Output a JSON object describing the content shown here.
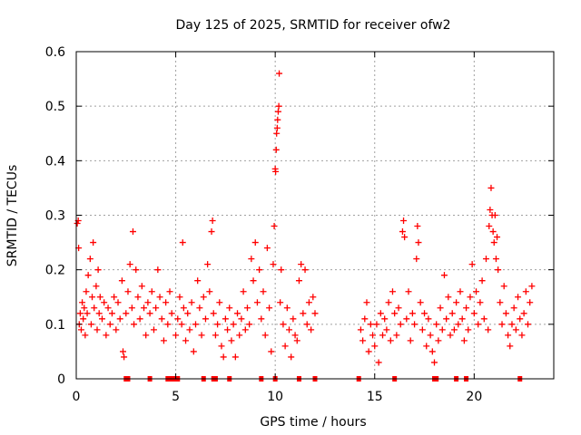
{
  "chart_data": {
    "type": "scatter",
    "title": "Day 125 of 2025, SRMTID for receiver ofw2",
    "xlabel": "GPS time / hours",
    "ylabel": "SRMTID / TECUs",
    "xlim": [
      0,
      24
    ],
    "ylim": [
      0,
      0.6
    ],
    "x_ticks": [
      0,
      5,
      10,
      15,
      20
    ],
    "x_tick_labels": [
      "0",
      "5",
      "10",
      "15",
      "20"
    ],
    "y_ticks": [
      0,
      0.1,
      0.2,
      0.3,
      0.4,
      0.5,
      0.6
    ],
    "y_tick_labels": [
      "0",
      "0.1",
      "0.2",
      "0.3",
      "0.4",
      "0.5",
      "0.6"
    ],
    "grid": true,
    "marker": "+",
    "series": [
      {
        "name": "SRMTID",
        "color": "#ff0000",
        "points": [
          [
            0.05,
            0.285
          ],
          [
            0.1,
            0.29
          ],
          [
            0.12,
            0.24
          ],
          [
            0.15,
            0.1
          ],
          [
            0.2,
            0.12
          ],
          [
            0.25,
            0.09
          ],
          [
            0.3,
            0.14
          ],
          [
            0.35,
            0.11
          ],
          [
            0.4,
            0.13
          ],
          [
            0.45,
            0.08
          ],
          [
            0.5,
            0.16
          ],
          [
            0.55,
            0.12
          ],
          [
            0.6,
            0.19
          ],
          [
            0.7,
            0.22
          ],
          [
            0.75,
            0.1
          ],
          [
            0.8,
            0.15
          ],
          [
            0.85,
            0.25
          ],
          [
            0.9,
            0.13
          ],
          [
            1.0,
            0.17
          ],
          [
            1.05,
            0.09
          ],
          [
            1.1,
            0.2
          ],
          [
            1.15,
            0.12
          ],
          [
            1.2,
            0.15
          ],
          [
            1.3,
            0.11
          ],
          [
            1.4,
            0.14
          ],
          [
            1.5,
            0.08
          ],
          [
            1.6,
            0.13
          ],
          [
            1.7,
            0.1
          ],
          [
            1.8,
            0.12
          ],
          [
            1.9,
            0.15
          ],
          [
            2.0,
            0.09
          ],
          [
            2.1,
            0.14
          ],
          [
            2.2,
            0.11
          ],
          [
            2.3,
            0.18
          ],
          [
            2.35,
            0.05
          ],
          [
            2.4,
            0.04
          ],
          [
            2.5,
            0.12
          ],
          [
            2.6,
            0.16
          ],
          [
            2.7,
            0.21
          ],
          [
            2.8,
            0.13
          ],
          [
            2.85,
            0.27
          ],
          [
            2.9,
            0.1
          ],
          [
            3.0,
            0.2
          ],
          [
            3.1,
            0.15
          ],
          [
            3.2,
            0.11
          ],
          [
            3.3,
            0.17
          ],
          [
            3.4,
            0.13
          ],
          [
            3.5,
            0.08
          ],
          [
            3.6,
            0.14
          ],
          [
            3.7,
            0.12
          ],
          [
            3.8,
            0.16
          ],
          [
            3.9,
            0.09
          ],
          [
            4.0,
            0.13
          ],
          [
            4.1,
            0.2
          ],
          [
            4.2,
            0.15
          ],
          [
            4.3,
            0.11
          ],
          [
            4.4,
            0.07
          ],
          [
            4.5,
            0.14
          ],
          [
            4.6,
            0.1
          ],
          [
            4.7,
            0.16
          ],
          [
            4.8,
            0.12
          ],
          [
            5.0,
            0.08
          ],
          [
            5.1,
            0.11
          ],
          [
            5.2,
            0.15
          ],
          [
            5.3,
            0.1
          ],
          [
            5.35,
            0.25
          ],
          [
            5.4,
            0.13
          ],
          [
            5.5,
            0.07
          ],
          [
            5.6,
            0.12
          ],
          [
            5.7,
            0.09
          ],
          [
            5.8,
            0.14
          ],
          [
            5.9,
            0.05
          ],
          [
            6.0,
            0.1
          ],
          [
            6.1,
            0.18
          ],
          [
            6.2,
            0.13
          ],
          [
            6.3,
            0.08
          ],
          [
            6.4,
            0.15
          ],
          [
            6.5,
            0.11
          ],
          [
            6.6,
            0.21
          ],
          [
            6.7,
            0.16
          ],
          [
            6.8,
            0.27
          ],
          [
            6.85,
            0.29
          ],
          [
            6.9,
            0.12
          ],
          [
            7.0,
            0.08
          ],
          [
            7.1,
            0.1
          ],
          [
            7.2,
            0.14
          ],
          [
            7.3,
            0.06
          ],
          [
            7.4,
            0.04
          ],
          [
            7.5,
            0.11
          ],
          [
            7.6,
            0.09
          ],
          [
            7.7,
            0.13
          ],
          [
            7.8,
            0.07
          ],
          [
            7.9,
            0.1
          ],
          [
            8.0,
            0.04
          ],
          [
            8.1,
            0.12
          ],
          [
            8.2,
            0.08
          ],
          [
            8.3,
            0.11
          ],
          [
            8.4,
            0.16
          ],
          [
            8.5,
            0.09
          ],
          [
            8.6,
            0.13
          ],
          [
            8.7,
            0.1
          ],
          [
            8.8,
            0.22
          ],
          [
            8.9,
            0.18
          ],
          [
            9.0,
            0.25
          ],
          [
            9.1,
            0.14
          ],
          [
            9.2,
            0.2
          ],
          [
            9.3,
            0.11
          ],
          [
            9.4,
            0.16
          ],
          [
            9.5,
            0.08
          ],
          [
            9.6,
            0.24
          ],
          [
            9.7,
            0.13
          ],
          [
            9.8,
            0.05
          ],
          [
            9.9,
            0.21
          ],
          [
            9.95,
            0.28
          ],
          [
            10.0,
            0.385
          ],
          [
            10.02,
            0.38
          ],
          [
            10.05,
            0.42
          ],
          [
            10.07,
            0.45
          ],
          [
            10.1,
            0.46
          ],
          [
            10.12,
            0.475
          ],
          [
            10.15,
            0.49
          ],
          [
            10.18,
            0.5
          ],
          [
            10.2,
            0.56
          ],
          [
            10.25,
            0.14
          ],
          [
            10.3,
            0.2
          ],
          [
            10.4,
            0.1
          ],
          [
            10.5,
            0.06
          ],
          [
            10.6,
            0.13
          ],
          [
            10.7,
            0.09
          ],
          [
            10.8,
            0.04
          ],
          [
            10.9,
            0.11
          ],
          [
            11.0,
            0.08
          ],
          [
            11.1,
            0.07
          ],
          [
            11.2,
            0.18
          ],
          [
            11.3,
            0.21
          ],
          [
            11.4,
            0.12
          ],
          [
            11.5,
            0.2
          ],
          [
            11.6,
            0.1
          ],
          [
            11.7,
            0.14
          ],
          [
            11.8,
            0.09
          ],
          [
            11.9,
            0.15
          ],
          [
            12.0,
            0.12
          ],
          [
            14.3,
            0.09
          ],
          [
            14.4,
            0.07
          ],
          [
            14.5,
            0.11
          ],
          [
            14.6,
            0.14
          ],
          [
            14.7,
            0.05
          ],
          [
            14.8,
            0.1
          ],
          [
            14.9,
            0.08
          ],
          [
            15.0,
            0.06
          ],
          [
            15.1,
            0.1
          ],
          [
            15.2,
            0.03
          ],
          [
            15.3,
            0.12
          ],
          [
            15.4,
            0.08
          ],
          [
            15.5,
            0.11
          ],
          [
            15.6,
            0.09
          ],
          [
            15.7,
            0.14
          ],
          [
            15.8,
            0.07
          ],
          [
            15.9,
            0.16
          ],
          [
            16.0,
            0.12
          ],
          [
            16.1,
            0.08
          ],
          [
            16.2,
            0.13
          ],
          [
            16.3,
            0.1
          ],
          [
            16.4,
            0.27
          ],
          [
            16.45,
            0.29
          ],
          [
            16.5,
            0.26
          ],
          [
            16.6,
            0.11
          ],
          [
            16.7,
            0.16
          ],
          [
            16.8,
            0.07
          ],
          [
            16.9,
            0.12
          ],
          [
            17.0,
            0.1
          ],
          [
            17.1,
            0.22
          ],
          [
            17.15,
            0.28
          ],
          [
            17.2,
            0.25
          ],
          [
            17.3,
            0.14
          ],
          [
            17.4,
            0.09
          ],
          [
            17.5,
            0.12
          ],
          [
            17.6,
            0.06
          ],
          [
            17.7,
            0.11
          ],
          [
            17.8,
            0.08
          ],
          [
            17.9,
            0.05
          ],
          [
            18.0,
            0.03
          ],
          [
            18.1,
            0.1
          ],
          [
            18.2,
            0.07
          ],
          [
            18.3,
            0.13
          ],
          [
            18.4,
            0.09
          ],
          [
            18.5,
            0.19
          ],
          [
            18.6,
            0.11
          ],
          [
            18.7,
            0.15
          ],
          [
            18.8,
            0.08
          ],
          [
            18.9,
            0.12
          ],
          [
            19.0,
            0.09
          ],
          [
            19.1,
            0.14
          ],
          [
            19.2,
            0.1
          ],
          [
            19.3,
            0.16
          ],
          [
            19.4,
            0.11
          ],
          [
            19.5,
            0.07
          ],
          [
            19.6,
            0.13
          ],
          [
            19.7,
            0.09
          ],
          [
            19.8,
            0.15
          ],
          [
            19.9,
            0.21
          ],
          [
            20.0,
            0.12
          ],
          [
            20.1,
            0.16
          ],
          [
            20.2,
            0.1
          ],
          [
            20.3,
            0.14
          ],
          [
            20.4,
            0.18
          ],
          [
            20.5,
            0.11
          ],
          [
            20.6,
            0.22
          ],
          [
            20.7,
            0.09
          ],
          [
            20.75,
            0.28
          ],
          [
            20.8,
            0.31
          ],
          [
            20.85,
            0.35
          ],
          [
            20.9,
            0.3
          ],
          [
            20.95,
            0.27
          ],
          [
            21.0,
            0.25
          ],
          [
            21.05,
            0.3
          ],
          [
            21.1,
            0.22
          ],
          [
            21.15,
            0.26
          ],
          [
            21.2,
            0.2
          ],
          [
            21.3,
            0.14
          ],
          [
            21.4,
            0.1
          ],
          [
            21.5,
            0.17
          ],
          [
            21.6,
            0.12
          ],
          [
            21.7,
            0.08
          ],
          [
            21.8,
            0.06
          ],
          [
            21.9,
            0.1
          ],
          [
            22.0,
            0.13
          ],
          [
            22.1,
            0.09
          ],
          [
            22.2,
            0.15
          ],
          [
            22.3,
            0.11
          ],
          [
            22.4,
            0.08
          ],
          [
            22.5,
            0.12
          ],
          [
            22.6,
            0.16
          ],
          [
            22.7,
            0.1
          ],
          [
            22.8,
            0.14
          ],
          [
            22.9,
            0.17
          ]
        ]
      }
    ],
    "baseline_markers": [
      2.5,
      2.6,
      3.7,
      4.6,
      4.7,
      4.8,
      4.9,
      5.0,
      5.1,
      6.4,
      6.9,
      7.0,
      7.7,
      9.3,
      10.0,
      11.2,
      12.0,
      14.2,
      16.0,
      18.0,
      18.1,
      19.1,
      19.6,
      22.3
    ]
  }
}
